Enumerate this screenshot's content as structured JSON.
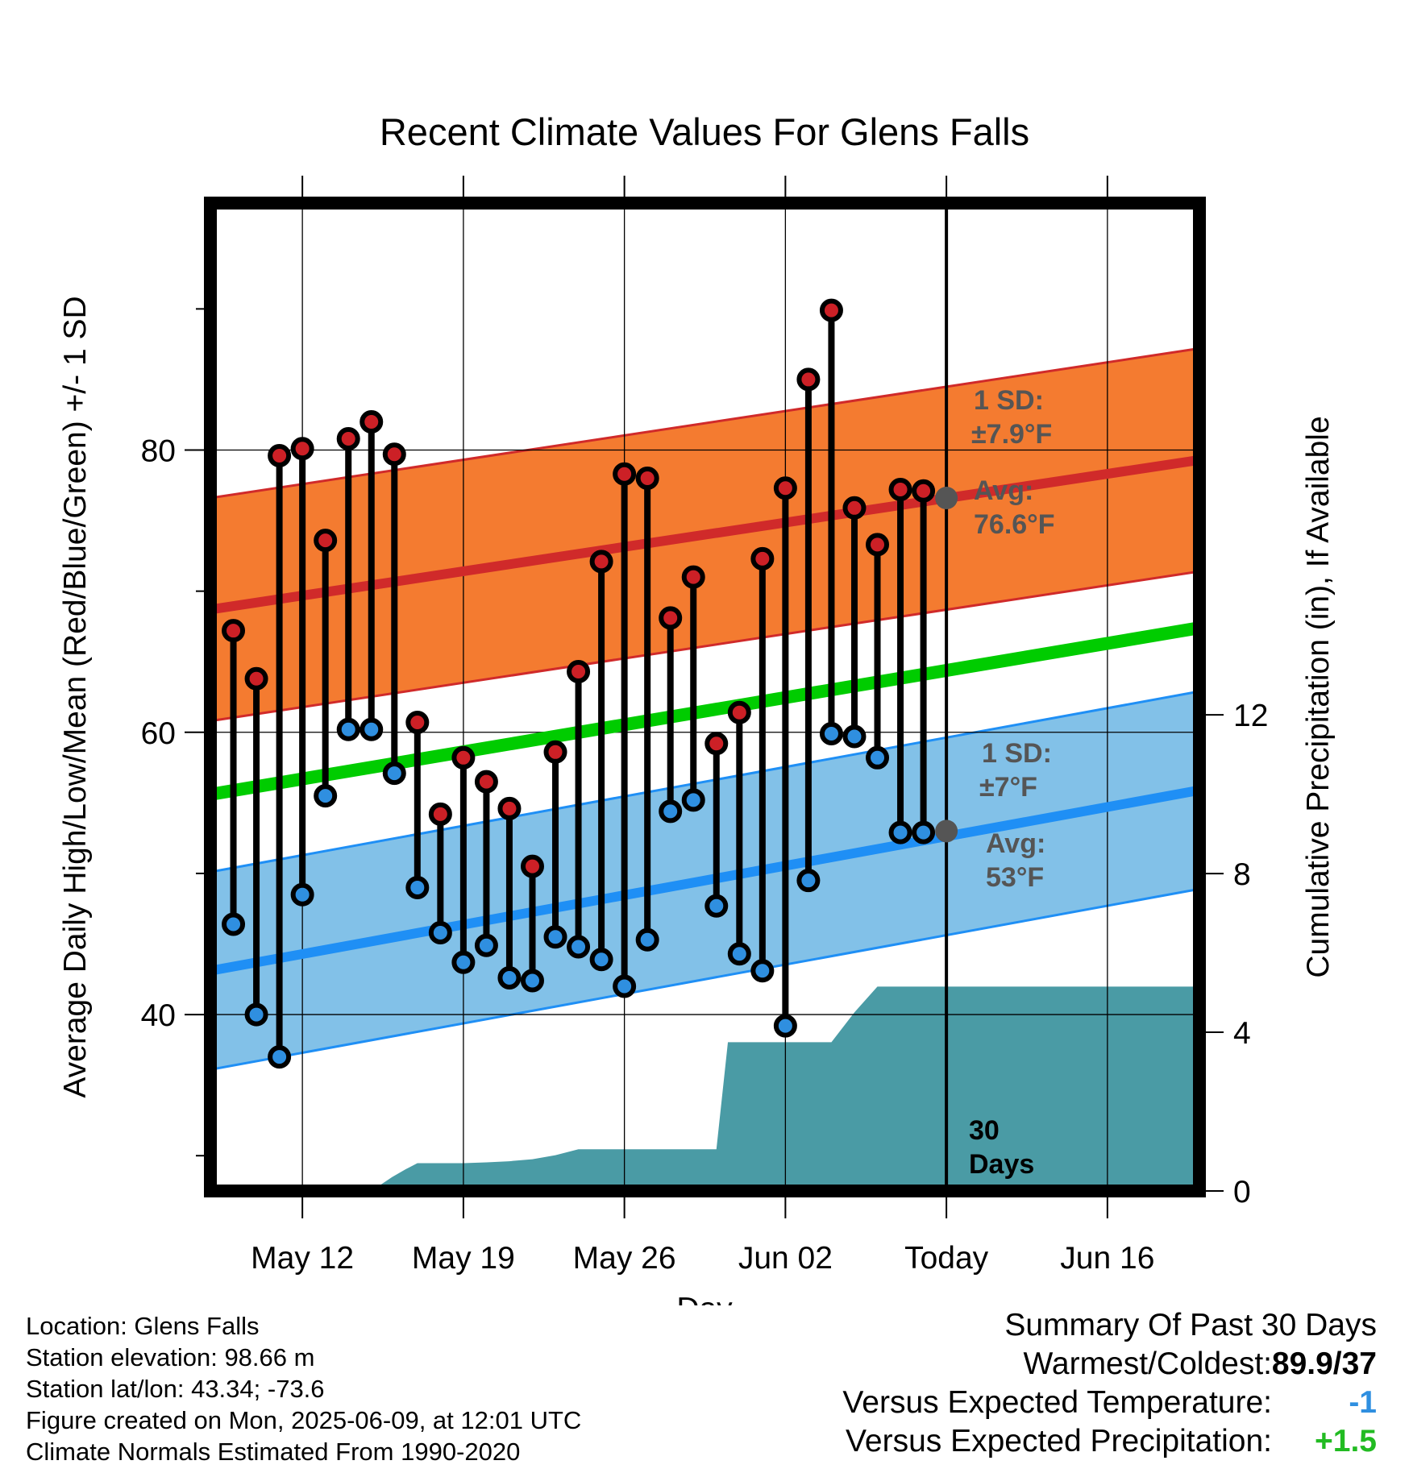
{
  "chart_data": {
    "type": "line",
    "title": "Recent Climate Values For Glens Falls",
    "xlabel": "Day",
    "ylabel": "Average Daily High/Low/Mean (Red/Blue/Green) +/- 1 SD",
    "y2label": "Cumulative Precipitation (in), If Available",
    "ylim": [
      27.5,
      97.5
    ],
    "y_ticks": [
      "40",
      "60",
      "80"
    ],
    "y2lim": [
      0,
      24.9
    ],
    "y2_ticks": [
      "0",
      "4",
      "8",
      "12"
    ],
    "xlim": [
      "2025-05-08",
      "2025-06-20"
    ],
    "x_ticks": [
      {
        "date": "2025-05-12",
        "label": "May 12"
      },
      {
        "date": "2025-05-19",
        "label": "May 19"
      },
      {
        "date": "2025-05-26",
        "label": "May 26"
      },
      {
        "date": "2025-06-02",
        "label": "Jun 02"
      },
      {
        "date": "2025-06-09",
        "label": "Today"
      },
      {
        "date": "2025-06-16",
        "label": "Jun 16"
      }
    ],
    "grid": true,
    "series": [
      {
        "name": "High",
        "color": "#cc2026",
        "x": [
          "2025-05-09",
          "2025-05-10",
          "2025-05-11",
          "2025-05-12",
          "2025-05-13",
          "2025-05-14",
          "2025-05-15",
          "2025-05-16",
          "2025-05-17",
          "2025-05-18",
          "2025-05-19",
          "2025-05-20",
          "2025-05-21",
          "2025-05-22",
          "2025-05-23",
          "2025-05-24",
          "2025-05-25",
          "2025-05-26",
          "2025-05-27",
          "2025-05-28",
          "2025-05-29",
          "2025-05-30",
          "2025-05-31",
          "2025-06-01",
          "2025-06-02",
          "2025-06-03",
          "2025-06-04",
          "2025-06-05",
          "2025-06-06",
          "2025-06-07",
          "2025-06-08"
        ],
        "values": [
          67.2,
          63.8,
          79.6,
          80.1,
          73.6,
          80.8,
          82.0,
          79.7,
          60.7,
          54.2,
          58.2,
          56.5,
          54.6,
          50.5,
          58.6,
          64.3,
          72.1,
          78.3,
          78.0,
          68.1,
          71.0,
          59.2,
          61.4,
          72.3,
          77.3,
          85.0,
          89.9,
          75.9,
          73.3,
          77.2,
          77.1
        ]
      },
      {
        "name": "Low",
        "color": "#2f8fe0",
        "x": [
          "2025-05-09",
          "2025-05-10",
          "2025-05-11",
          "2025-05-12",
          "2025-05-13",
          "2025-05-14",
          "2025-05-15",
          "2025-05-16",
          "2025-05-17",
          "2025-05-18",
          "2025-05-19",
          "2025-05-20",
          "2025-05-21",
          "2025-05-22",
          "2025-05-23",
          "2025-05-24",
          "2025-05-25",
          "2025-05-26",
          "2025-05-27",
          "2025-05-28",
          "2025-05-29",
          "2025-05-30",
          "2025-05-31",
          "2025-06-01",
          "2025-06-02",
          "2025-06-03",
          "2025-06-04",
          "2025-06-05",
          "2025-06-06",
          "2025-06-07",
          "2025-06-08"
        ],
        "values": [
          46.4,
          40.0,
          37.0,
          48.5,
          55.5,
          60.2,
          60.2,
          57.1,
          49.0,
          45.8,
          43.7,
          44.9,
          42.6,
          42.4,
          45.5,
          44.8,
          43.9,
          42.0,
          45.3,
          54.4,
          55.2,
          47.7,
          44.3,
          43.1,
          39.2,
          49.5,
          59.9,
          59.7,
          58.2,
          52.9,
          52.9
        ]
      }
    ],
    "normals": {
      "high_mean": {
        "name": "Avg High",
        "color": "#d02a2a",
        "start": 68.7,
        "end": 79.3
      },
      "high_sd_band": {
        "color": "#f47b30",
        "sd": 7.9
      },
      "mean": {
        "name": "Mean",
        "color": "#00cc00",
        "start": 55.6,
        "end": 67.4
      },
      "low_mean": {
        "name": "Avg Low",
        "color": "#1f8ff5",
        "start": 43.1,
        "end": 55.9
      },
      "low_sd_band": {
        "color": "#82c1e8",
        "sd": 7.0
      }
    },
    "precipitation": {
      "color": "#4a9ba5",
      "x": [
        "2025-05-08",
        "2025-05-15",
        "2025-05-15.9",
        "2025-05-16.5",
        "2025-05-17",
        "2025-05-18",
        "2025-05-19",
        "2025-05-20",
        "2025-05-21",
        "2025-05-22",
        "2025-05-23",
        "2025-05-24",
        "2025-05-29",
        "2025-05-30",
        "2025-05-30.5",
        "2025-06-03",
        "2025-06-04",
        "2025-06-05",
        "2025-06-06",
        "2025-06-20"
      ],
      "values": [
        0,
        0,
        0.35,
        0.55,
        0.7,
        0.7,
        0.7,
        0.72,
        0.75,
        0.8,
        0.9,
        1.05,
        1.05,
        1.05,
        3.75,
        3.75,
        3.75,
        4.5,
        5.15,
        5.15
      ]
    },
    "annotations": {
      "high_sd_label": "1 SD:",
      "high_sd_value": "±7.9°F",
      "high_avg_label": "Avg:",
      "high_avg_value": "76.6°F",
      "high_avg_today": 76.6,
      "low_sd_label": "1 SD:",
      "low_sd_value": "±7°F",
      "low_avg_label": "Avg:",
      "low_avg_value": "53°F",
      "low_avg_today": 53,
      "today_label_1": "30",
      "today_label_2": "Days"
    }
  },
  "info": {
    "location": "Location: Glens Falls",
    "elevation": "Station elevation: 98.66 m",
    "latlon": "Station lat/lon: 43.34; -73.6",
    "created": "Figure created on Mon, 2025-06-09, at 12:01 UTC",
    "normals": "Climate Normals Estimated From 1990-2020"
  },
  "summary": {
    "title": "Summary Of Past 30 Days",
    "warmest_coldest_label": "Warmest/Coldest:",
    "warmest_coldest_value": "89.9/37",
    "temp_label": "Versus Expected Temperature:",
    "temp_value": "-1",
    "temp_color": "#2f8fe0",
    "precip_label": "Versus Expected Precipitation:",
    "precip_value": "+1.5",
    "precip_color": "#22bb22"
  }
}
